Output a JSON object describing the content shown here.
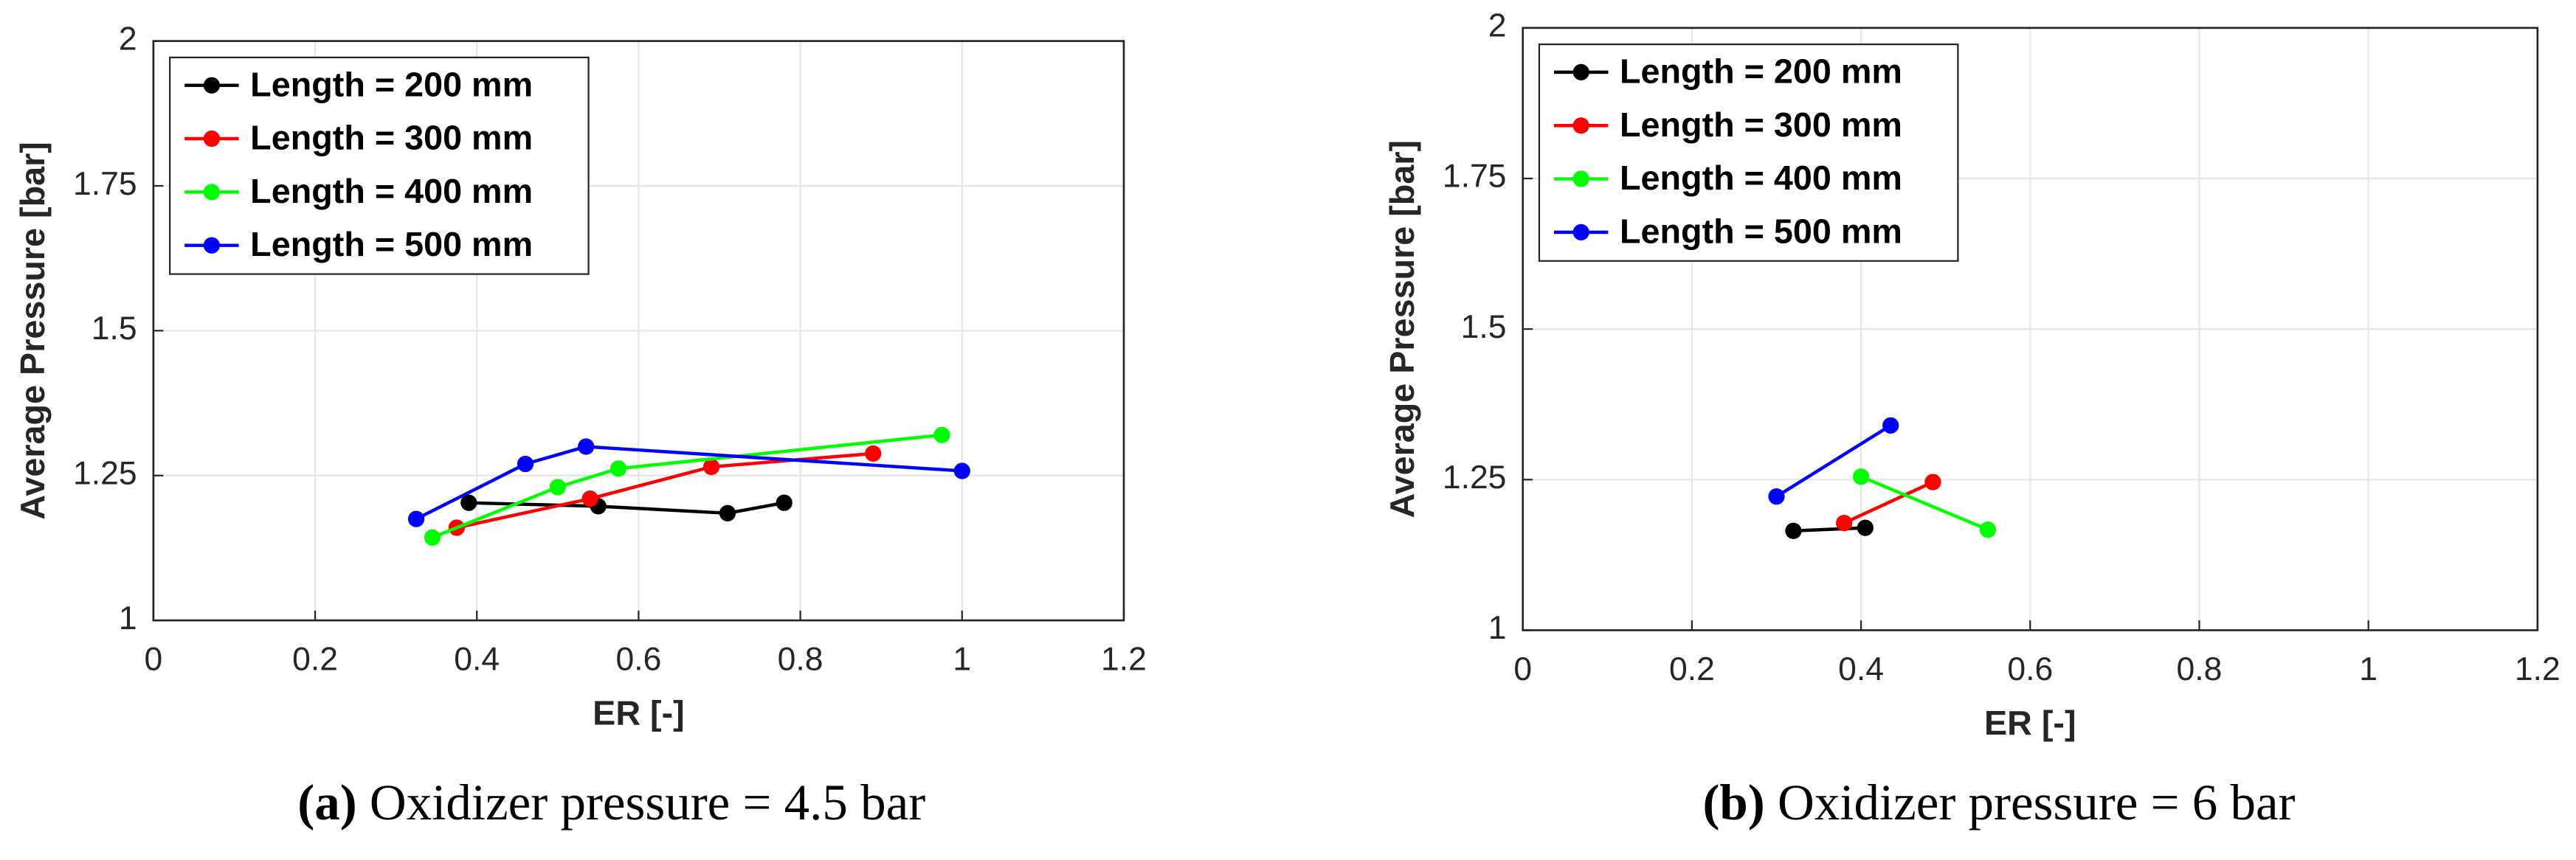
{
  "chart_data": [
    {
      "type": "line",
      "xlabel": "ER [-]",
      "ylabel": "Average Pressure [bar]",
      "caption_label": "(a)",
      "caption": "Oxidizer pressure = 4.5 bar",
      "xlim": [
        0,
        1.2
      ],
      "xticks": [
        0,
        0.2,
        0.4,
        0.6,
        0.8,
        1,
        1.2
      ],
      "ylim": [
        1,
        2
      ],
      "yticks": [
        1,
        1.25,
        1.5,
        1.75,
        2
      ],
      "grid": true,
      "legend": "upper left",
      "series": [
        {
          "name": "Length = 200 mm",
          "color": "#000000",
          "x": [
            0.39,
            0.55,
            0.71,
            0.78
          ],
          "values": [
            1.203,
            1.197,
            1.185,
            1.203
          ]
        },
        {
          "name": "Length = 300 mm",
          "color": "#ff0000",
          "x": [
            0.375,
            0.54,
            0.69,
            0.89
          ],
          "values": [
            1.16,
            1.21,
            1.265,
            1.288
          ]
        },
        {
          "name": "Length = 400 mm",
          "color": "#00ff00",
          "x": [
            0.345,
            0.5,
            0.575,
            0.975
          ],
          "values": [
            1.143,
            1.23,
            1.262,
            1.32
          ]
        },
        {
          "name": "Length = 500 mm",
          "color": "#0000ff",
          "x": [
            0.325,
            0.46,
            0.535,
            1.0
          ],
          "values": [
            1.175,
            1.27,
            1.3,
            1.258
          ]
        }
      ]
    },
    {
      "type": "line",
      "xlabel": "ER [-]",
      "ylabel": "Average Pressure [bar]",
      "caption_label": "(b)",
      "caption": "Oxidizer pressure = 6 bar",
      "xlim": [
        0,
        1.2
      ],
      "xticks": [
        0,
        0.2,
        0.4,
        0.6,
        0.8,
        1,
        1.2
      ],
      "ylim": [
        1,
        2
      ],
      "yticks": [
        1,
        1.25,
        1.5,
        1.75,
        2
      ],
      "grid": true,
      "legend": "upper left",
      "series": [
        {
          "name": "Length = 200 mm",
          "color": "#000000",
          "x": [
            0.32,
            0.405
          ],
          "values": [
            1.165,
            1.17
          ]
        },
        {
          "name": "Length = 300 mm",
          "color": "#ff0000",
          "x": [
            0.38,
            0.485
          ],
          "values": [
            1.178,
            1.246
          ]
        },
        {
          "name": "Length = 400 mm",
          "color": "#00ff00",
          "x": [
            0.4,
            0.55
          ],
          "values": [
            1.255,
            1.167
          ]
        },
        {
          "name": "Length = 500 mm",
          "color": "#0000ff",
          "x": [
            0.3,
            0.435
          ],
          "values": [
            1.222,
            1.34
          ]
        }
      ]
    }
  ]
}
